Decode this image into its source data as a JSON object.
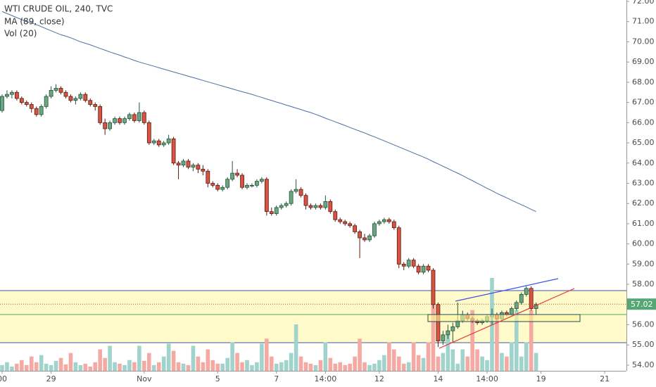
{
  "chart_data": {
    "type": "candlestick",
    "title": "WTI CRUDE OIL, 240, TVC",
    "categories": [
      "00",
      null,
      null,
      null,
      null,
      null,
      null,
      null,
      null,
      null,
      "29",
      null,
      null,
      null,
      null,
      null,
      null,
      null,
      null,
      null,
      null,
      null,
      null,
      null,
      null,
      null,
      null,
      null,
      null,
      "Nov",
      null,
      null,
      null,
      null,
      null,
      null,
      null,
      null,
      null,
      null,
      null,
      null,
      null,
      null,
      "5",
      null,
      null,
      null,
      null,
      null,
      null,
      null,
      null,
      null,
      null,
      null,
      "7",
      null,
      null,
      null,
      null,
      null,
      null,
      null,
      null,
      null,
      "14:00",
      null,
      null,
      null,
      null,
      null,
      null,
      null,
      null,
      null,
      null,
      "12",
      null,
      null,
      null,
      null,
      null,
      null,
      null,
      null,
      null,
      null,
      null,
      "14",
      null,
      null,
      null,
      null,
      null,
      null,
      null,
      null,
      null,
      "14:00",
      null,
      null,
      null,
      null,
      null,
      null,
      null,
      null,
      null,
      null,
      "19",
      null,
      null,
      null,
      null,
      null,
      null,
      null,
      null,
      null,
      null,
      null,
      null,
      "21",
      null,
      null,
      null,
      null
    ],
    "candles": [
      [
        66.6,
        67.4,
        66.5,
        67.3
      ],
      [
        67.3,
        67.6,
        67.2,
        67.4
      ],
      [
        67.4,
        67.6,
        67.2,
        67.5
      ],
      [
        67.5,
        67.6,
        67.1,
        67.2
      ],
      [
        67.2,
        67.3,
        66.9,
        67.0
      ],
      [
        67.0,
        67.1,
        66.8,
        66.9
      ],
      [
        66.9,
        67.0,
        66.5,
        66.7
      ],
      [
        66.7,
        66.8,
        66.3,
        66.4
      ],
      [
        66.4,
        66.9,
        66.3,
        66.8
      ],
      [
        66.8,
        67.4,
        66.7,
        67.3
      ],
      [
        67.3,
        67.8,
        67.2,
        67.6
      ],
      [
        67.6,
        67.9,
        67.5,
        67.7
      ],
      [
        67.7,
        67.8,
        67.4,
        67.5
      ],
      [
        67.5,
        67.6,
        67.2,
        67.3
      ],
      [
        67.3,
        67.4,
        67.0,
        67.1
      ],
      [
        67.1,
        67.3,
        66.9,
        67.2
      ],
      [
        67.2,
        67.5,
        67.1,
        67.4
      ],
      [
        67.4,
        67.5,
        67.0,
        67.1
      ],
      [
        67.1,
        67.2,
        66.8,
        66.9
      ],
      [
        66.9,
        67.0,
        66.6,
        66.8
      ],
      [
        66.8,
        66.9,
        65.9,
        66.0
      ],
      [
        66.0,
        66.2,
        65.4,
        65.7
      ],
      [
        65.7,
        66.1,
        65.6,
        66.0
      ],
      [
        66.0,
        66.3,
        65.9,
        66.2
      ],
      [
        66.2,
        66.3,
        65.9,
        66.0
      ],
      [
        66.0,
        66.3,
        65.9,
        66.2
      ],
      [
        66.2,
        66.5,
        66.1,
        66.4
      ],
      [
        66.4,
        66.5,
        66.0,
        66.1
      ],
      [
        66.1,
        67.0,
        66.0,
        66.5
      ],
      [
        66.5,
        66.6,
        65.9,
        66.0
      ],
      [
        66.0,
        66.1,
        64.9,
        65.0
      ],
      [
        65.0,
        65.2,
        64.9,
        65.1
      ],
      [
        65.1,
        65.2,
        64.8,
        64.9
      ],
      [
        64.9,
        65.1,
        64.8,
        65.0
      ],
      [
        65.0,
        65.4,
        64.9,
        65.2
      ],
      [
        65.2,
        65.3,
        63.9,
        64.0
      ],
      [
        64.0,
        64.1,
        63.2,
        63.9
      ],
      [
        63.9,
        64.2,
        63.8,
        64.1
      ],
      [
        64.1,
        64.2,
        63.7,
        63.8
      ],
      [
        63.8,
        64.0,
        63.6,
        63.9
      ],
      [
        63.9,
        64.0,
        63.5,
        63.7
      ],
      [
        63.7,
        63.9,
        63.4,
        63.6
      ],
      [
        63.6,
        63.7,
        62.8,
        63.0
      ],
      [
        63.0,
        63.1,
        62.8,
        62.9
      ],
      [
        62.9,
        63.0,
        62.6,
        62.7
      ],
      [
        62.7,
        62.9,
        62.6,
        62.8
      ],
      [
        62.8,
        63.3,
        62.7,
        63.2
      ],
      [
        63.2,
        64.1,
        63.1,
        63.5
      ],
      [
        63.5,
        63.7,
        63.3,
        63.4
      ],
      [
        63.4,
        63.5,
        62.7,
        62.8
      ],
      [
        62.8,
        63.0,
        62.7,
        62.9
      ],
      [
        62.9,
        63.0,
        62.8,
        62.9
      ],
      [
        62.9,
        63.2,
        62.8,
        63.1
      ],
      [
        63.1,
        63.3,
        63.0,
        63.2
      ],
      [
        63.2,
        63.3,
        61.4,
        61.6
      ],
      [
        61.6,
        61.8,
        61.4,
        61.5
      ],
      [
        61.5,
        61.9,
        61.4,
        61.8
      ],
      [
        61.8,
        62.0,
        61.7,
        61.9
      ],
      [
        61.9,
        62.1,
        61.8,
        62.0
      ],
      [
        62.0,
        62.7,
        61.9,
        62.6
      ],
      [
        62.6,
        63.2,
        62.5,
        62.7
      ],
      [
        62.7,
        62.8,
        62.3,
        62.4
      ],
      [
        62.4,
        62.5,
        61.7,
        61.9
      ],
      [
        61.9,
        62.0,
        61.7,
        61.8
      ],
      [
        61.8,
        62.0,
        61.7,
        61.9
      ],
      [
        61.9,
        62.0,
        61.7,
        61.8
      ],
      [
        61.8,
        62.4,
        61.7,
        62.1
      ],
      [
        62.1,
        62.2,
        61.5,
        61.6
      ],
      [
        61.6,
        61.7,
        61.1,
        61.2
      ],
      [
        61.2,
        61.3,
        61.0,
        61.1
      ],
      [
        61.1,
        61.2,
        60.9,
        61.0
      ],
      [
        61.0,
        61.1,
        60.8,
        60.9
      ],
      [
        60.9,
        61.0,
        60.5,
        60.6
      ],
      [
        60.6,
        60.7,
        59.3,
        60.3
      ],
      [
        60.3,
        60.5,
        60.1,
        60.2
      ],
      [
        60.2,
        60.5,
        60.1,
        60.4
      ],
      [
        60.4,
        61.1,
        60.3,
        61.0
      ],
      [
        61.0,
        61.2,
        60.9,
        61.1
      ],
      [
        61.1,
        61.3,
        61.0,
        61.2
      ],
      [
        61.2,
        61.3,
        61.0,
        61.1
      ],
      [
        61.1,
        61.2,
        60.7,
        60.8
      ],
      [
        60.8,
        60.9,
        58.8,
        59.0
      ],
      [
        59.0,
        59.1,
        58.7,
        58.9
      ],
      [
        58.9,
        59.3,
        58.8,
        59.2
      ],
      [
        59.2,
        59.3,
        58.8,
        58.9
      ],
      [
        58.9,
        59.0,
        58.5,
        58.6
      ],
      [
        58.6,
        59.0,
        58.5,
        58.9
      ],
      [
        58.9,
        59.0,
        58.6,
        58.7
      ],
      [
        58.7,
        58.8,
        56.8,
        57.0
      ],
      [
        57.0,
        57.1,
        54.9,
        55.2
      ],
      [
        55.2,
        55.7,
        55.0,
        55.5
      ],
      [
        55.5,
        56.0,
        55.3,
        55.7
      ],
      [
        55.7,
        56.1,
        55.1,
        55.9
      ],
      [
        55.9,
        57.1,
        55.8,
        56.2
      ],
      [
        56.2,
        56.7,
        56.1,
        56.5
      ],
      [
        56.5,
        56.6,
        56.2,
        56.3
      ],
      [
        56.3,
        56.4,
        56.1,
        56.2
      ],
      [
        56.2,
        56.3,
        56.0,
        56.1
      ],
      [
        56.1,
        56.3,
        56.0,
        56.2
      ],
      [
        56.2,
        56.5,
        56.1,
        56.4
      ],
      [
        56.4,
        56.8,
        56.0,
        56.5
      ],
      [
        56.5,
        56.6,
        56.2,
        56.3
      ],
      [
        56.3,
        56.7,
        56.2,
        56.6
      ],
      [
        56.6,
        56.7,
        56.4,
        56.5
      ],
      [
        56.5,
        56.9,
        56.4,
        56.8
      ],
      [
        56.8,
        57.2,
        56.7,
        57.1
      ],
      [
        57.1,
        57.6,
        57.0,
        57.5
      ],
      [
        57.5,
        57.9,
        57.4,
        57.8
      ],
      [
        57.8,
        57.9,
        56.7,
        56.8
      ],
      [
        56.8,
        57.1,
        56.5,
        57.0
      ],
      null,
      null,
      null,
      null,
      null,
      null,
      null,
      null,
      null,
      null,
      null,
      null,
      null,
      null,
      null,
      null,
      null,
      null
    ],
    "up_color": "#6ba583",
    "down_color": "#d75442",
    "ma": {
      "name": "MA (89, close)",
      "color": "#4a6fa5",
      "values": [
        71.5,
        71.4,
        71.3,
        71.2,
        71.1,
        71.0,
        70.95,
        70.85,
        70.75,
        70.65,
        70.55,
        70.45,
        70.35,
        70.28,
        70.2,
        70.1,
        70.0,
        69.93,
        69.85,
        69.76,
        69.67,
        69.59,
        69.5,
        69.42,
        69.34,
        69.25,
        69.17,
        69.08,
        69.0,
        68.93,
        68.86,
        68.79,
        68.72,
        68.65,
        68.58,
        68.51,
        68.44,
        68.37,
        68.3,
        68.23,
        68.16,
        68.09,
        68.02,
        67.95,
        67.88,
        67.81,
        67.74,
        67.67,
        67.6,
        67.53,
        67.47,
        67.4,
        67.32,
        67.25,
        67.17,
        67.1,
        67.02,
        66.95,
        66.87,
        66.8,
        66.72,
        66.65,
        66.57,
        66.5,
        66.41,
        66.32,
        66.22,
        66.13,
        66.04,
        65.95,
        65.86,
        65.76,
        65.67,
        65.58,
        65.49,
        65.39,
        65.3,
        65.2,
        65.1,
        65.0,
        64.9,
        64.8,
        64.7,
        64.6,
        64.5,
        64.4,
        64.3,
        64.19,
        64.07,
        63.96,
        63.84,
        63.73,
        63.61,
        63.5,
        63.38,
        63.25,
        63.13,
        63.0,
        62.88,
        62.75,
        62.63,
        62.5,
        62.39,
        62.28,
        62.16,
        62.05,
        61.94,
        61.83,
        61.71,
        61.6,
        null,
        null,
        null,
        null,
        null,
        null,
        null,
        null,
        null,
        null,
        null,
        null,
        null,
        null,
        null,
        null,
        null,
        null
      ]
    },
    "volume": {
      "name": "Vol (20)",
      "up_color": "#9fd3cc",
      "down_color": "#f4a9a3",
      "values": [
        8,
        12,
        6,
        10,
        15,
        8,
        20,
        12,
        22,
        10,
        8,
        14,
        18,
        9,
        25,
        12,
        8,
        10,
        6,
        12,
        30,
        18,
        35,
        12,
        10,
        8,
        15,
        12,
        35,
        14,
        25,
        8,
        12,
        20,
        38,
        28,
        12,
        10,
        8,
        35,
        20,
        12,
        30,
        15,
        10,
        10,
        18,
        40,
        25,
        12,
        15,
        8,
        12,
        38,
        45,
        20,
        10,
        12,
        15,
        25,
        65,
        20,
        12,
        10,
        8,
        15,
        40,
        18,
        10,
        12,
        8,
        10,
        20,
        45,
        12,
        8,
        10,
        15,
        22,
        40,
        30,
        20,
        10,
        12,
        40,
        22,
        18,
        40,
        95,
        20,
        25,
        50,
        30,
        10,
        30,
        20,
        85,
        30,
        20,
        15,
        130,
        75,
        25,
        20,
        40,
        85,
        20,
        40,
        85,
        25,
        null,
        null,
        null,
        null,
        null,
        null,
        null,
        null,
        null,
        null,
        null,
        null,
        null,
        null,
        null,
        null,
        null,
        null
      ]
    },
    "last_price": 57.02,
    "ylim": [
      53.72,
      72.07
    ],
    "yticks": [
      {
        "value": 54,
        "label": "54.00"
      },
      {
        "value": 55,
        "label": "55.00"
      },
      {
        "value": 56,
        "label": "56.00"
      },
      {
        "value": 57,
        "label": "57.00"
      },
      {
        "value": 58,
        "label": "58.00"
      },
      {
        "value": 59,
        "label": "59.00"
      },
      {
        "value": 60,
        "label": "60.00"
      },
      {
        "value": 61,
        "label": "61.00"
      },
      {
        "value": 62,
        "label": "62.00"
      },
      {
        "value": 63,
        "label": "63.00"
      },
      {
        "value": 64,
        "label": "64.00"
      },
      {
        "value": 65,
        "label": "65.00"
      },
      {
        "value": 66,
        "label": "66.00"
      },
      {
        "value": 67,
        "label": "67.00"
      },
      {
        "value": 68,
        "label": "68.00"
      },
      {
        "value": 69,
        "label": "69.00"
      },
      {
        "value": 70,
        "label": "70.00"
      },
      {
        "value": 71,
        "label": "71.00"
      },
      {
        "value": 72,
        "label": "72.00"
      }
    ]
  }
}
